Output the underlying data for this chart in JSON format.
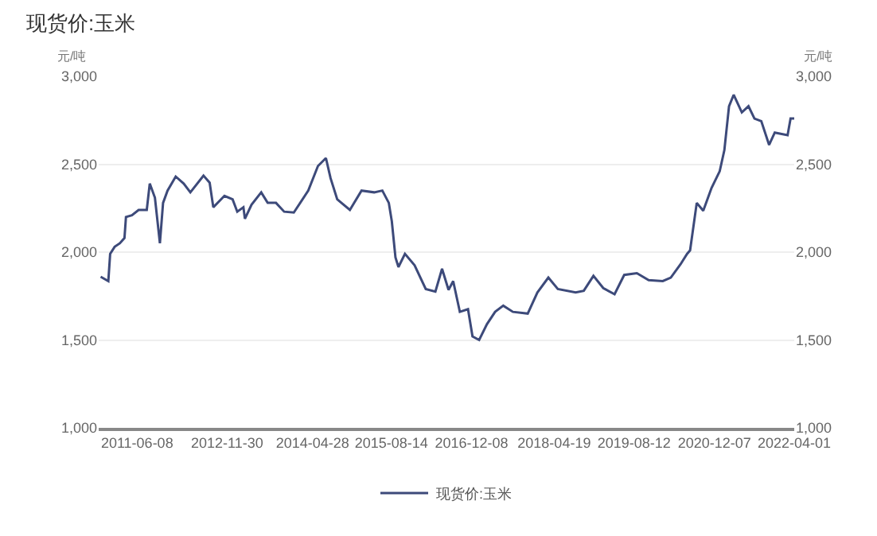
{
  "chart_data": {
    "type": "line",
    "title": "现货价:玉米",
    "ylabel": "元/吨",
    "y2label": "元/吨",
    "x": [
      "2010-11-01",
      "2010-12-17",
      "2010-12-28",
      "2011-01-24",
      "2011-02-24",
      "2011-03-24",
      "2011-04-02",
      "2011-05-08",
      "2011-06-17",
      "2011-08-05",
      "2011-08-23",
      "2011-09-23",
      "2011-10-23",
      "2011-11-11",
      "2011-12-08",
      "2012-01-26",
      "2012-03-14",
      "2012-04-23",
      "2012-07-11",
      "2012-08-17",
      "2012-09-08",
      "2012-11-14",
      "2013-01-02",
      "2013-01-30",
      "2013-03-08",
      "2013-03-17",
      "2013-04-26",
      "2013-06-23",
      "2013-08-01",
      "2013-09-20",
      "2013-11-08",
      "2014-01-05",
      "2014-04-02",
      "2014-05-30",
      "2014-07-17",
      "2014-08-14",
      "2014-09-23",
      "2014-12-08",
      "2015-02-16",
      "2015-05-03",
      "2015-06-21",
      "2015-07-30",
      "2015-08-17",
      "2015-09-08",
      "2015-09-26",
      "2015-11-04",
      "2016-01-01",
      "2016-03-08",
      "2016-05-05",
      "2016-06-14",
      "2016-07-23",
      "2016-08-20",
      "2016-09-29",
      "2016-11-17",
      "2016-12-14",
      "2017-01-23",
      "2017-03-11",
      "2017-04-29",
      "2017-06-17",
      "2017-08-14",
      "2017-11-11",
      "2018-01-08",
      "2018-03-15",
      "2018-05-11",
      "2018-08-26",
      "2018-10-14",
      "2018-12-11",
      "2019-02-08",
      "2019-04-17",
      "2019-06-14",
      "2019-08-29",
      "2019-11-08",
      "2020-02-01",
      "2020-03-20",
      "2020-05-17",
      "2020-06-26",
      "2020-07-14",
      "2020-08-23",
      "2020-10-01",
      "2020-11-20",
      "2021-01-08",
      "2021-02-05",
      "2021-03-05",
      "2021-04-02",
      "2021-05-21",
      "2021-06-30",
      "2021-08-05",
      "2021-09-15",
      "2021-11-01",
      "2021-12-05",
      "2022-02-20",
      "2022-03-10",
      "2022-04-01"
    ],
    "series": [
      {
        "name": "现货价:玉米",
        "color": "#3d4a7a",
        "values": [
          1860,
          1835,
          1990,
          2030,
          2050,
          2080,
          2200,
          2210,
          2240,
          2240,
          2390,
          2310,
          2050,
          2280,
          2350,
          2430,
          2390,
          2340,
          2435,
          2395,
          2255,
          2320,
          2300,
          2230,
          2255,
          2190,
          2270,
          2340,
          2280,
          2280,
          2230,
          2225,
          2350,
          2490,
          2535,
          2420,
          2300,
          2240,
          2350,
          2340,
          2350,
          2280,
          2175,
          1970,
          1915,
          1990,
          1925,
          1790,
          1775,
          1905,
          1785,
          1835,
          1660,
          1675,
          1520,
          1500,
          1590,
          1660,
          1695,
          1660,
          1650,
          1770,
          1855,
          1790,
          1770,
          1780,
          1865,
          1795,
          1760,
          1870,
          1880,
          1840,
          1835,
          1855,
          1930,
          1990,
          2010,
          2280,
          2235,
          2365,
          2460,
          2580,
          2830,
          2895,
          2795,
          2830,
          2760,
          2745,
          2610,
          2680,
          2665,
          2760,
          2760
        ]
      }
    ],
    "xlim": [
      "2010-10-20",
      "2022-04-01"
    ],
    "xticks": [
      "2011-06-08",
      "2012-11-30",
      "2014-04-28",
      "2015-08-14",
      "2016-12-08",
      "2018-04-19",
      "2019-08-12",
      "2020-12-07",
      "2022-04-01"
    ],
    "ylim": [
      1000,
      3000
    ],
    "yticks": [
      {
        "value": 1000,
        "label": "1,000"
      },
      {
        "value": 1500,
        "label": "1,500"
      },
      {
        "value": 2000,
        "label": "2,000"
      },
      {
        "value": 2500,
        "label": "2,500"
      },
      {
        "value": 3000,
        "label": "3,000"
      }
    ],
    "y2lim": [
      1000,
      3000
    ],
    "y2ticks": [
      {
        "value": 1000,
        "label": "1,000"
      },
      {
        "value": 1500,
        "label": "1,500"
      },
      {
        "value": 2000,
        "label": "2,000"
      },
      {
        "value": 2500,
        "label": "2,500"
      },
      {
        "value": 3000,
        "label": "3,000"
      }
    ],
    "grid": "y",
    "legend": "bottom",
    "marker": "none",
    "line_style": "solid"
  }
}
